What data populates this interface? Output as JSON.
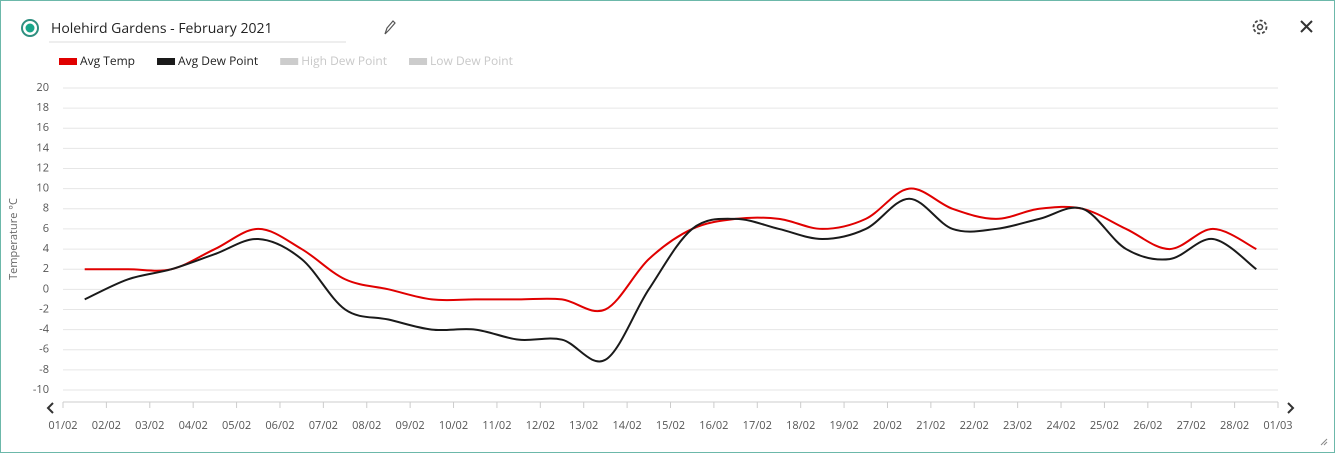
{
  "header": {
    "title": "Holehird Gardens - February 2021"
  },
  "chart_data": {
    "type": "line",
    "y_label": "Temperature °C",
    "xticks": [
      "01/02",
      "02/02",
      "03/02",
      "04/02",
      "05/02",
      "06/02",
      "07/02",
      "08/02",
      "09/02",
      "10/02",
      "11/02",
      "12/02",
      "13/02",
      "14/02",
      "15/02",
      "16/02",
      "17/02",
      "18/02",
      "19/02",
      "20/02",
      "21/02",
      "22/02",
      "23/02",
      "24/02",
      "25/02",
      "26/02",
      "27/02",
      "28/02",
      "01/03"
    ],
    "ylim": [
      -10,
      20
    ],
    "yticks": [
      -10,
      -8,
      -6,
      -4,
      -2,
      0,
      2,
      4,
      6,
      8,
      10,
      12,
      14,
      16,
      18,
      20
    ],
    "grid": true,
    "legend": "top-left",
    "series": [
      {
        "name": "Avg Temp",
        "color": "#e00000",
        "visible": true,
        "values": [
          2,
          2,
          2,
          4,
          6,
          4,
          1,
          0,
          -1,
          -1,
          -1,
          -1,
          -2,
          3,
          6,
          7,
          7,
          6,
          7,
          10,
          8,
          7,
          8,
          8,
          6,
          4,
          6,
          4
        ]
      },
      {
        "name": "Avg Dew Point",
        "color": "#1a1a1a",
        "visible": true,
        "values": [
          -1,
          1,
          2,
          3.5,
          5,
          3,
          -2,
          -3,
          -4,
          -4,
          -5,
          -5,
          -7,
          0,
          6,
          7,
          6,
          5,
          6,
          9,
          6,
          6,
          7,
          8,
          4,
          3,
          5,
          2
        ]
      },
      {
        "name": "High Dew Point",
        "color": "#cccccc",
        "visible": false
      },
      {
        "name": "Low Dew Point",
        "color": "#cccccc",
        "visible": false
      }
    ]
  }
}
